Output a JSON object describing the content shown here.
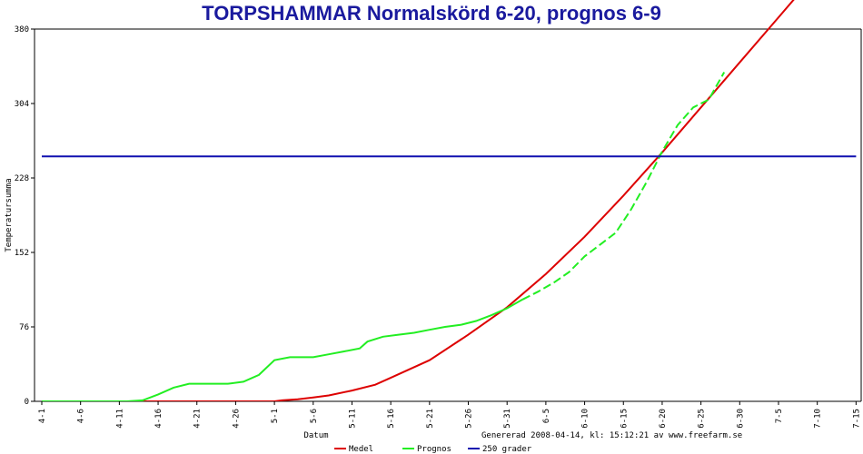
{
  "chart_data": {
    "type": "line",
    "title": "TORPSHAMMAR Normalskörd 6-20, prognos 6-9",
    "xlabel": "Datum",
    "ylabel": "Temperatursumma",
    "footer": "Genererad 2008-04-14, kl: 15:12:21 av www.freefarm.se",
    "ylim": [
      0,
      380
    ],
    "yticks": [
      0,
      76,
      152,
      228,
      304,
      380
    ],
    "xlim": [
      0,
      105
    ],
    "x_tick_labels": [
      "4-1",
      "4-6",
      "4-11",
      "4-16",
      "4-21",
      "4-26",
      "5-1",
      "5-6",
      "5-11",
      "5-16",
      "5-21",
      "5-26",
      "5-31",
      "6-5",
      "6-10",
      "6-15",
      "6-20",
      "6-25",
      "6-30",
      "7-5",
      "7-10",
      "7-15"
    ],
    "x_tick_start": "4-1",
    "x_tick_step_days": 5,
    "grid": false,
    "legend_position": "bottom",
    "series": [
      {
        "name": "Medel",
        "color": "#dd0000",
        "style": "solid",
        "x": [
          0,
          10,
          20,
          30,
          31,
          33,
          35,
          37,
          40,
          43,
          45,
          50,
          55,
          60,
          65,
          70,
          75,
          80,
          85,
          90,
          95,
          100
        ],
        "y": [
          0,
          0,
          0,
          0,
          1,
          2,
          4,
          6,
          11,
          17,
          24,
          42,
          68,
          96,
          130,
          168,
          210,
          254,
          300,
          346,
          392,
          438
        ]
      },
      {
        "name": "Prognos",
        "color": "#22ee22",
        "style": "solid-then-dashed",
        "dash_from_x": 63.5,
        "x": [
          0,
          8,
          11,
          13,
          15,
          17,
          19,
          22,
          24,
          26,
          28,
          30,
          32,
          35,
          37,
          39,
          41,
          42,
          44,
          46,
          48,
          50,
          52,
          54,
          56,
          58,
          60,
          62,
          64,
          66,
          68,
          70,
          72,
          74,
          76,
          78,
          80,
          82,
          84,
          86,
          88
        ],
        "y": [
          0,
          0,
          0,
          1,
          7,
          14,
          18,
          18,
          18,
          20,
          27,
          42,
          45,
          45,
          48,
          51,
          54,
          61,
          66,
          68,
          70,
          73,
          76,
          78,
          82,
          88,
          95,
          104,
          112,
          121,
          132,
          148,
          160,
          172,
          196,
          224,
          255,
          282,
          300,
          308,
          336
        ]
      },
      {
        "name": "250 grader",
        "color": "#1010b0",
        "style": "solid",
        "x": [
          0,
          105
        ],
        "y": [
          250,
          250
        ]
      }
    ]
  }
}
